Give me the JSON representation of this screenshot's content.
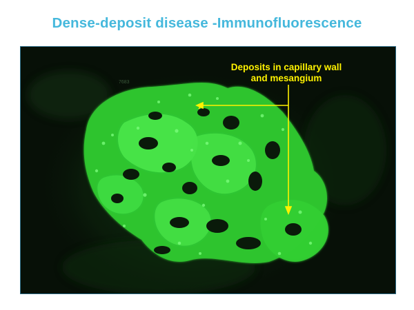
{
  "slide": {
    "title": "Dense-deposit disease -Immunofluorescence",
    "title_color": "#45b8dc"
  },
  "micrograph": {
    "description_type": "immunofluorescence micrograph of glomerulus",
    "background_color": "#071007",
    "stain_color": "#39d83a"
  },
  "annotation": {
    "line1": "Deposits in capillary wall",
    "line2": "and mesangium",
    "color": "#fff200"
  },
  "faint_mark": "7683"
}
